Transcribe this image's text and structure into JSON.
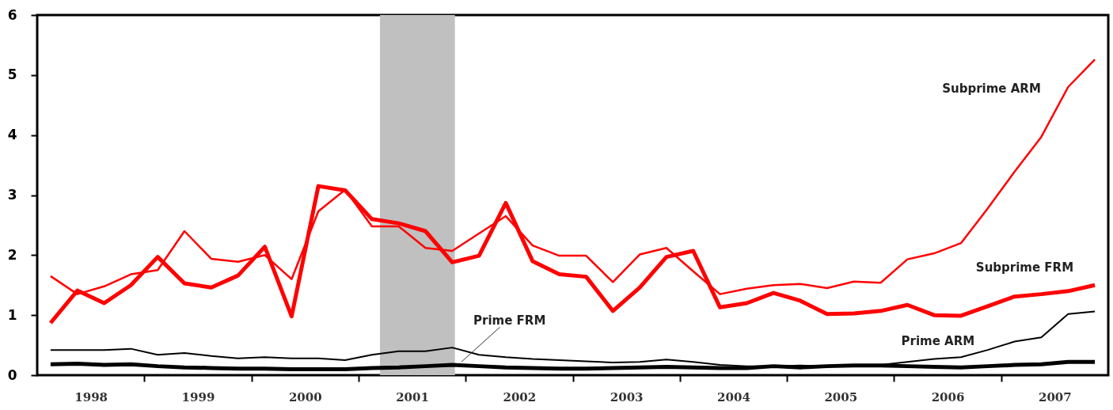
{
  "chart_data": {
    "type": "line",
    "x": [
      1998.125,
      1998.375,
      1998.625,
      1998.875,
      1999.125,
      1999.375,
      1999.625,
      1999.875,
      2000.125,
      2000.375,
      2000.625,
      2000.875,
      2001.125,
      2001.375,
      2001.625,
      2001.875,
      2002.125,
      2002.375,
      2002.625,
      2002.875,
      2003.125,
      2003.375,
      2003.625,
      2003.875,
      2004.125,
      2004.375,
      2004.625,
      2004.875,
      2005.125,
      2005.375,
      2005.625,
      2005.875,
      2006.125,
      2006.375,
      2006.625,
      2006.875,
      2007.125,
      2007.375,
      2007.625,
      2007.875
    ],
    "series": [
      {
        "name": "Subprime ARM",
        "color": "#ff0000",
        "values": [
          1.65,
          1.35,
          1.48,
          1.68,
          1.75,
          2.4,
          1.94,
          1.89,
          2.0,
          1.6,
          2.73,
          3.09,
          2.48,
          2.48,
          2.12,
          2.07,
          2.36,
          2.65,
          2.16,
          1.99,
          1.99,
          1.55,
          2.01,
          2.12,
          1.73,
          1.35,
          1.44,
          1.5,
          1.52,
          1.45,
          1.56,
          1.54,
          1.93,
          2.03,
          2.2,
          2.78,
          3.39,
          3.97,
          4.8,
          5.26
        ]
      },
      {
        "name": "Subprime FRM",
        "color": "#ff0000",
        "values": [
          0.87,
          1.41,
          1.2,
          1.5,
          1.97,
          1.53,
          1.46,
          1.66,
          2.14,
          0.98,
          3.15,
          3.08,
          2.6,
          2.53,
          2.4,
          1.88,
          1.99,
          2.87,
          1.9,
          1.68,
          1.64,
          1.07,
          1.46,
          1.97,
          2.07,
          1.13,
          1.2,
          1.37,
          1.24,
          1.02,
          1.03,
          1.07,
          1.17,
          1.0,
          0.99,
          1.15,
          1.31,
          1.35,
          1.4,
          1.5
        ]
      },
      {
        "name": "Prime ARM",
        "color": "#000000",
        "values": [
          0.42,
          0.42,
          0.42,
          0.44,
          0.34,
          0.37,
          0.32,
          0.28,
          0.3,
          0.28,
          0.28,
          0.25,
          0.34,
          0.4,
          0.4,
          0.46,
          0.34,
          0.3,
          0.27,
          0.25,
          0.23,
          0.21,
          0.22,
          0.26,
          0.22,
          0.17,
          0.15,
          0.15,
          0.16,
          0.15,
          0.16,
          0.17,
          0.22,
          0.27,
          0.3,
          0.42,
          0.56,
          0.63,
          1.02,
          1.06
        ]
      },
      {
        "name": "Prime FRM",
        "color": "#000000",
        "values": [
          0.18,
          0.19,
          0.17,
          0.18,
          0.15,
          0.13,
          0.12,
          0.11,
          0.11,
          0.1,
          0.1,
          0.1,
          0.12,
          0.13,
          0.15,
          0.17,
          0.15,
          0.13,
          0.12,
          0.11,
          0.11,
          0.12,
          0.13,
          0.14,
          0.13,
          0.12,
          0.12,
          0.15,
          0.13,
          0.15,
          0.16,
          0.16,
          0.15,
          0.14,
          0.13,
          0.15,
          0.17,
          0.18,
          0.22,
          0.22
        ]
      }
    ],
    "xlim": [
      1998,
      2008
    ],
    "xticks": [
      {
        "value": 1998.5,
        "label": "1998"
      },
      {
        "value": 1999,
        "label": null
      },
      {
        "value": 1999.5,
        "label": "1999"
      },
      {
        "value": 2000,
        "label": null
      },
      {
        "value": 2000.5,
        "label": "2000"
      },
      {
        "value": 2001,
        "label": null
      },
      {
        "value": 2001.5,
        "label": "2001"
      },
      {
        "value": 2002,
        "label": null
      },
      {
        "value": 2002.5,
        "label": "2002"
      },
      {
        "value": 2003,
        "label": null
      },
      {
        "value": 2003.5,
        "label": "2003"
      },
      {
        "value": 2004,
        "label": null
      },
      {
        "value": 2004.5,
        "label": "2004"
      },
      {
        "value": 2005,
        "label": null
      },
      {
        "value": 2005.5,
        "label": "2005"
      },
      {
        "value": 2006,
        "label": null
      },
      {
        "value": 2006.5,
        "label": "2006"
      },
      {
        "value": 2007,
        "label": null
      },
      {
        "value": 2007.5,
        "label": "2007"
      }
    ],
    "ylim": [
      0,
      6
    ],
    "yticks": [
      0,
      1,
      2,
      3,
      4,
      5,
      6
    ],
    "bands": [
      {
        "axis": "x",
        "from": 2001.2,
        "to": 2001.9,
        "color": "#c0c0c0"
      }
    ]
  }
}
